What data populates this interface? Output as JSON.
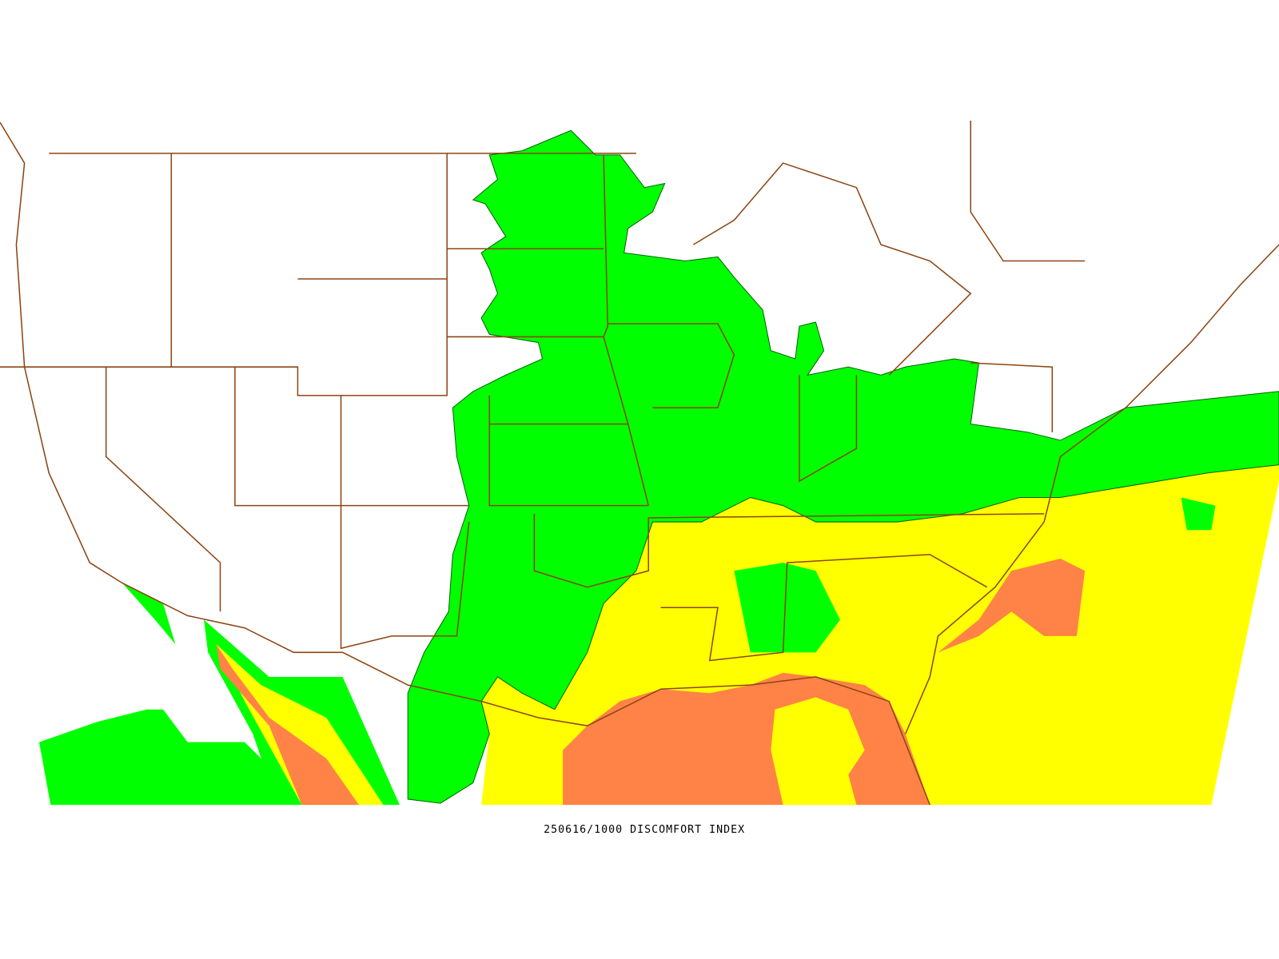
{
  "map": {
    "caption": "250616/1000 DISCOMFORT INDEX"
  }
}
